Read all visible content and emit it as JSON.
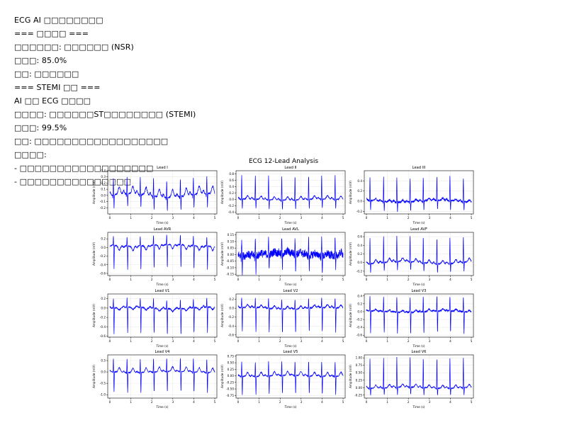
{
  "report": {
    "lines": [
      "ECG AI □□□□□□□□",
      "=== □□□□ ===",
      "□□□□□□: □□□□□□ (NSR)",
      "□□□: 85.0%",
      "□□: □□□□□□",
      "=== STEMI □□ ===",
      "AI □□ ECG □□□□",
      "□□□□: □□□□□□ST□□□□□□□□ (STEMI)",
      "□□□: 99.5%",
      "□□: □□□□□□□□□□□□□□□□□□",
      "□□□□:",
      "- □□□□□□□□□□□□□□□□□□",
      "- □□□□□□□□□□□□□□□"
    ]
  },
  "chart_data": {
    "type": "line",
    "title": "ECG 12-Lead Analysis",
    "xlabel": "Time (s)",
    "ylabel": "Amplitude (mV)",
    "xlim": [
      -0.1,
      5.1
    ],
    "xticks": [
      0,
      1,
      2,
      3,
      4,
      5
    ],
    "grid": true,
    "line_color": "#0000ff",
    "beat_times": [
      0.17,
      0.82,
      1.45,
      2.08,
      2.71,
      3.36,
      3.98,
      4.62
    ],
    "panels": [
      {
        "name": "Lead I",
        "ylim": [
          -0.3,
          0.4
        ],
        "yticks": [
          -0.2,
          -0.1,
          0.0,
          0.1,
          0.2,
          0.3,
          0.4
        ],
        "ytick_labels": [
          "-0.2",
          "-0.1",
          "0.0",
          "0.1",
          "0.2",
          "0.3",
          "0.4"
        ],
        "baseline": 0.0,
        "r": 0.28,
        "s": -0.22,
        "q": -0.05,
        "p": 0.05,
        "t": 0.12,
        "noise": 0.015,
        "wander": 0.03
      },
      {
        "name": "Lead II",
        "ylim": [
          -0.45,
          0.9
        ],
        "yticks": [
          -0.4,
          -0.2,
          0.0,
          0.2,
          0.4,
          0.6,
          0.8
        ],
        "ytick_labels": [
          "-0.4",
          "-0.2",
          "0.0",
          "0.2",
          "0.4",
          "0.6",
          "0.8"
        ],
        "baseline": 0.0,
        "r": 0.75,
        "s": -0.3,
        "q": -0.05,
        "p": 0.05,
        "t": 0.1,
        "noise": 0.015,
        "wander": 0.02
      },
      {
        "name": "Lead III",
        "ylim": [
          -0.25,
          0.6
        ],
        "yticks": [
          -0.2,
          0.0,
          0.2,
          0.4
        ],
        "ytick_labels": [
          "-0.2",
          "0.0",
          "0.2",
          "0.4"
        ],
        "baseline": 0.0,
        "r": 0.48,
        "s": -0.18,
        "q": -0.03,
        "p": 0.03,
        "t": 0.04,
        "noise": 0.02,
        "wander": 0.02
      },
      {
        "name": "Lead AVR",
        "ylim": [
          -0.65,
          0.35
        ],
        "yticks": [
          -0.6,
          -0.4,
          -0.2,
          0.0,
          0.2
        ],
        "ytick_labels": [
          "-0.6",
          "-0.4",
          "-0.2",
          "0.0",
          "0.2"
        ],
        "baseline": 0.05,
        "r": 0.22,
        "s": -0.55,
        "q": 0.0,
        "p": -0.03,
        "t": -0.1,
        "noise": 0.015,
        "wander": 0.02
      },
      {
        "name": "Lead AVL",
        "ylim": [
          -0.16,
          0.17
        ],
        "yticks": [
          -0.15,
          -0.1,
          -0.05,
          0.0,
          0.05,
          0.1,
          0.15
        ],
        "ytick_labels": [
          "-0.15",
          "-0.10",
          "-0.05",
          "0.00",
          "0.05",
          "0.10",
          "0.15"
        ],
        "baseline": 0.0,
        "r": 0.13,
        "s": -0.12,
        "q": -0.02,
        "p": 0.01,
        "t": 0.02,
        "noise": 0.03,
        "wander": 0.01
      },
      {
        "name": "Lead AVF",
        "ylim": [
          -0.3,
          0.7
        ],
        "yticks": [
          -0.2,
          0.0,
          0.2,
          0.4,
          0.6
        ],
        "ytick_labels": [
          "-0.2",
          "0.0",
          "0.2",
          "0.4",
          "0.6"
        ],
        "baseline": 0.0,
        "r": 0.6,
        "s": -0.2,
        "q": -0.03,
        "p": 0.04,
        "t": 0.08,
        "noise": 0.015,
        "wander": 0.03
      },
      {
        "name": "Lead V1",
        "ylim": [
          -0.62,
          0.3
        ],
        "yticks": [
          -0.6,
          -0.4,
          -0.2,
          0.0,
          0.2
        ],
        "ytick_labels": [
          "-0.6",
          "-0.4",
          "-0.2",
          "0.0",
          "0.2"
        ],
        "baseline": 0.0,
        "r": 0.2,
        "s": -0.55,
        "q": 0.0,
        "p": 0.03,
        "t": -0.05,
        "noise": 0.015,
        "wander": 0.02
      },
      {
        "name": "Lead V2",
        "ylim": [
          -0.65,
          0.32
        ],
        "yticks": [
          -0.6,
          -0.4,
          -0.2,
          0.0,
          0.2
        ],
        "ytick_labels": [
          "-0.6",
          "-0.4",
          "-0.2",
          "0.0",
          "0.2"
        ],
        "baseline": 0.0,
        "r": 0.22,
        "s": -0.55,
        "q": 0.0,
        "p": 0.03,
        "t": 0.06,
        "noise": 0.015,
        "wander": 0.02
      },
      {
        "name": "Lead V3",
        "ylim": [
          -0.65,
          0.45
        ],
        "yticks": [
          -0.6,
          -0.4,
          -0.2,
          0.0,
          0.2,
          0.4
        ],
        "ytick_labels": [
          "-0.6",
          "-0.4",
          "-0.2",
          "0.0",
          "0.2",
          "0.4"
        ],
        "baseline": 0.0,
        "r": 0.38,
        "s": -0.55,
        "q": 0.0,
        "p": 0.02,
        "t": 0.05,
        "noise": 0.02,
        "wander": 0.02
      },
      {
        "name": "Lead V4",
        "ylim": [
          -1.15,
          0.75
        ],
        "yticks": [
          -1.0,
          -0.5,
          0.0,
          0.5
        ],
        "ytick_labels": [
          "-1.0",
          "-0.5",
          "0.0",
          "0.5"
        ],
        "baseline": 0.0,
        "r": 0.6,
        "s": -0.9,
        "q": -0.05,
        "p": 0.05,
        "t": 0.2,
        "noise": 0.02,
        "wander": 0.03
      },
      {
        "name": "Lead V5",
        "ylim": [
          -0.85,
          0.8
        ],
        "yticks": [
          -0.75,
          -0.5,
          -0.25,
          0.0,
          0.25,
          0.5,
          0.75
        ],
        "ytick_labels": [
          "-0.75",
          "-0.50",
          "-0.25",
          "0.00",
          "0.25",
          "0.50",
          "0.75"
        ],
        "baseline": 0.0,
        "r": 0.55,
        "s": -0.7,
        "q": -0.05,
        "p": 0.05,
        "t": 0.15,
        "noise": 0.02,
        "wander": 0.02
      },
      {
        "name": "Lead V6",
        "ylim": [
          -0.35,
          1.1
        ],
        "yticks": [
          -0.25,
          0.0,
          0.25,
          0.5,
          0.75,
          1.0
        ],
        "ytick_labels": [
          "-0.25",
          "0.00",
          "0.25",
          "0.50",
          "0.75",
          "1.00"
        ],
        "baseline": 0.0,
        "r": 1.0,
        "s": -0.25,
        "q": -0.05,
        "p": 0.05,
        "t": 0.1,
        "noise": 0.015,
        "wander": 0.02
      }
    ]
  }
}
